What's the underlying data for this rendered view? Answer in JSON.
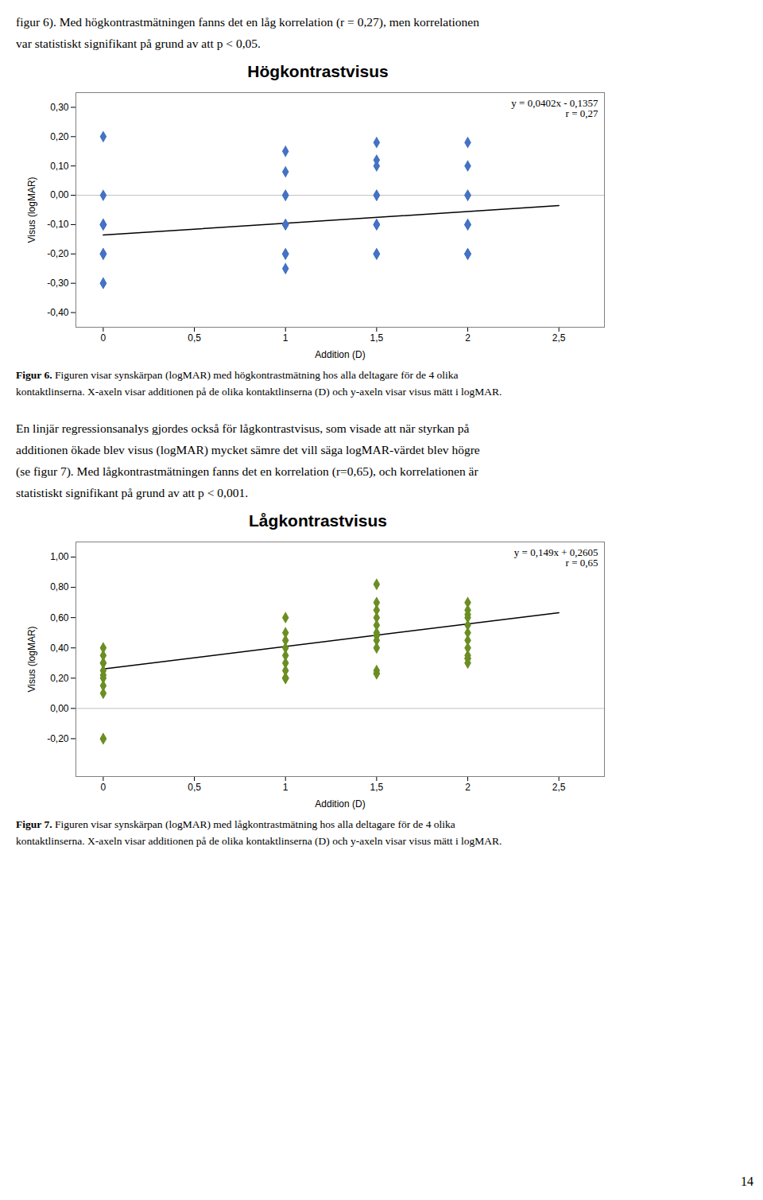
{
  "chart_data": [
    {
      "type": "scatter",
      "text_above": [
        "figur 6). Med högkontrastmätningen fanns det en låg korrelation (r = 0,27), men korrelationen",
        "var statistiskt signifikant på grund av att p < 0,05."
      ],
      "title": "Högkontrastvisus",
      "x_label": "Addition (D)",
      "y_label": "Visus (logMAR)",
      "x": [
        0,
        0,
        0,
        0,
        0,
        0,
        0,
        0,
        0,
        0,
        0,
        0,
        0,
        1,
        1,
        1,
        1,
        1,
        1,
        1,
        1,
        1,
        1,
        1,
        1.5,
        1.5,
        1.5,
        1.5,
        1.5,
        1.5,
        1.5,
        1.5,
        1.5,
        1.5,
        1.5,
        2,
        2,
        2,
        2,
        2,
        2,
        2,
        2,
        2,
        2,
        2,
        2
      ],
      "values": [
        0.2,
        0.0,
        -0.1,
        -0.1,
        -0.1,
        -0.1,
        -0.1,
        -0.2,
        -0.2,
        -0.2,
        -0.2,
        -0.3,
        -0.3,
        0.15,
        0.08,
        0.0,
        0.0,
        -0.1,
        -0.1,
        -0.1,
        -0.2,
        -0.2,
        -0.2,
        -0.25,
        0.18,
        0.12,
        0.1,
        0.0,
        0.0,
        -0.1,
        -0.1,
        -0.1,
        -0.2,
        -0.2,
        -0.2,
        0.18,
        0.1,
        0.0,
        0.0,
        -0.1,
        -0.1,
        -0.1,
        -0.2,
        -0.2,
        -0.2,
        -0.2,
        -0.2
      ],
      "color": "#4472C4",
      "marker": "diamond",
      "trend_line": {
        "x": [
          0,
          2.5
        ],
        "values": [
          -0.1357,
          -0.0352
        ],
        "color": "#000000"
      },
      "rule_y": {
        "value": 0,
        "color": "#C0C0C0"
      },
      "annotations": [
        "y = 0,0402x - 0,1357",
        "r = 0,27"
      ],
      "xlim": [
        -0.15,
        2.75
      ],
      "xticks": [
        0,
        {
          "value": 0.5,
          "label": "0,5"
        },
        1,
        {
          "value": 1.5,
          "label": "1,5"
        },
        2,
        {
          "value": 2.5,
          "label": "2,5"
        }
      ],
      "ylim": [
        -0.45,
        0.35
      ],
      "yticks": [
        {
          "value": -0.4,
          "label": "-0,40"
        },
        {
          "value": -0.3,
          "label": "-0,30"
        },
        {
          "value": -0.2,
          "label": "-0,20"
        },
        {
          "value": -0.1,
          "label": "-0,10"
        },
        {
          "value": 0.0,
          "label": "0,00"
        },
        {
          "value": 0.1,
          "label": "0,10"
        },
        {
          "value": 0.2,
          "label": "0,20"
        },
        {
          "value": 0.3,
          "label": "0,30"
        }
      ],
      "grid": false,
      "caption_label": "Figur 6.",
      "caption": [
        "Figuren visar synskärpan (logMAR) med högkontrastmätning hos alla deltagare för de 4 olika",
        "kontaktlinserna. X-axeln visar additionen på de olika kontaktlinserna (D) och y-axeln visar visus mätt i logMAR."
      ]
    },
    {
      "type": "scatter",
      "text_above": [
        "En linjär regressionsanalys gjordes också för lågkontrastvisus, som visade att när styrkan på",
        "additionen ökade blev visus (logMAR) mycket sämre det vill säga logMAR-värdet blev högre",
        "(se figur 7). Med lågkontrastmätningen fanns det en korrelation (r=0,65), och korrelationen är",
        "statistiskt signifikant på grund av att p < 0,001."
      ],
      "title": "Lågkontrastvisus",
      "x_label": "Addition (D)",
      "y_label": "Visus (logMAR)",
      "x": [
        0,
        0,
        0,
        0,
        0,
        0,
        0,
        0,
        0,
        0,
        0,
        1,
        1,
        1,
        1,
        1,
        1,
        1,
        1,
        1,
        1,
        1,
        1.5,
        1.5,
        1.5,
        1.5,
        1.5,
        1.5,
        1.5,
        1.5,
        1.5,
        1.5,
        1.5,
        1.5,
        2,
        2,
        2,
        2,
        2,
        2,
        2,
        2,
        2,
        2,
        2,
        2
      ],
      "values": [
        0.4,
        0.35,
        0.3,
        0.3,
        0.25,
        0.22,
        0.2,
        0.15,
        0.1,
        -0.2,
        -0.2,
        0.6,
        0.5,
        0.45,
        0.4,
        0.35,
        0.3,
        0.25,
        0.2,
        0.2,
        0.2,
        0.2,
        0.82,
        0.7,
        0.65,
        0.6,
        0.55,
        0.5,
        0.48,
        0.45,
        0.4,
        0.25,
        0.23,
        0.23,
        0.7,
        0.65,
        0.62,
        0.6,
        0.55,
        0.5,
        0.45,
        0.4,
        0.35,
        0.33,
        0.33,
        0.3
      ],
      "color": "#6B8E23",
      "marker": "diamond",
      "trend_line": {
        "x": [
          0,
          2.5
        ],
        "values": [
          0.2605,
          0.633
        ],
        "color": "#000000"
      },
      "rule_y": {
        "value": 0,
        "color": "#C0C0C0"
      },
      "annotations": [
        "y = 0,149x + 0,2605",
        "r = 0,65"
      ],
      "xlim": [
        -0.15,
        2.75
      ],
      "xticks": [
        0,
        {
          "value": 0.5,
          "label": "0,5"
        },
        1,
        {
          "value": 1.5,
          "label": "1,5"
        },
        2,
        {
          "value": 2.5,
          "label": "2,5"
        }
      ],
      "ylim": [
        -0.45,
        1.1
      ],
      "yticks": [
        {
          "value": -0.2,
          "label": "-0,20"
        },
        {
          "value": 0.0,
          "label": "0,00"
        },
        {
          "value": 0.2,
          "label": "0,20"
        },
        {
          "value": 0.4,
          "label": "0,40"
        },
        {
          "value": 0.6,
          "label": "0,60"
        },
        {
          "value": 0.8,
          "label": "0,80"
        },
        {
          "value": 1.0,
          "label": "1,00"
        }
      ],
      "grid": false,
      "caption_label": "Figur 7.",
      "caption": [
        "Figuren visar synskärpan (logMAR) med lågkontrastmätning hos alla deltagare för de 4 olika",
        "kontaktlinserna. X-axeln visar additionen på de olika kontaktlinserna (D) och y-axeln visar visus mätt i logMAR."
      ]
    }
  ],
  "page_number": "14"
}
